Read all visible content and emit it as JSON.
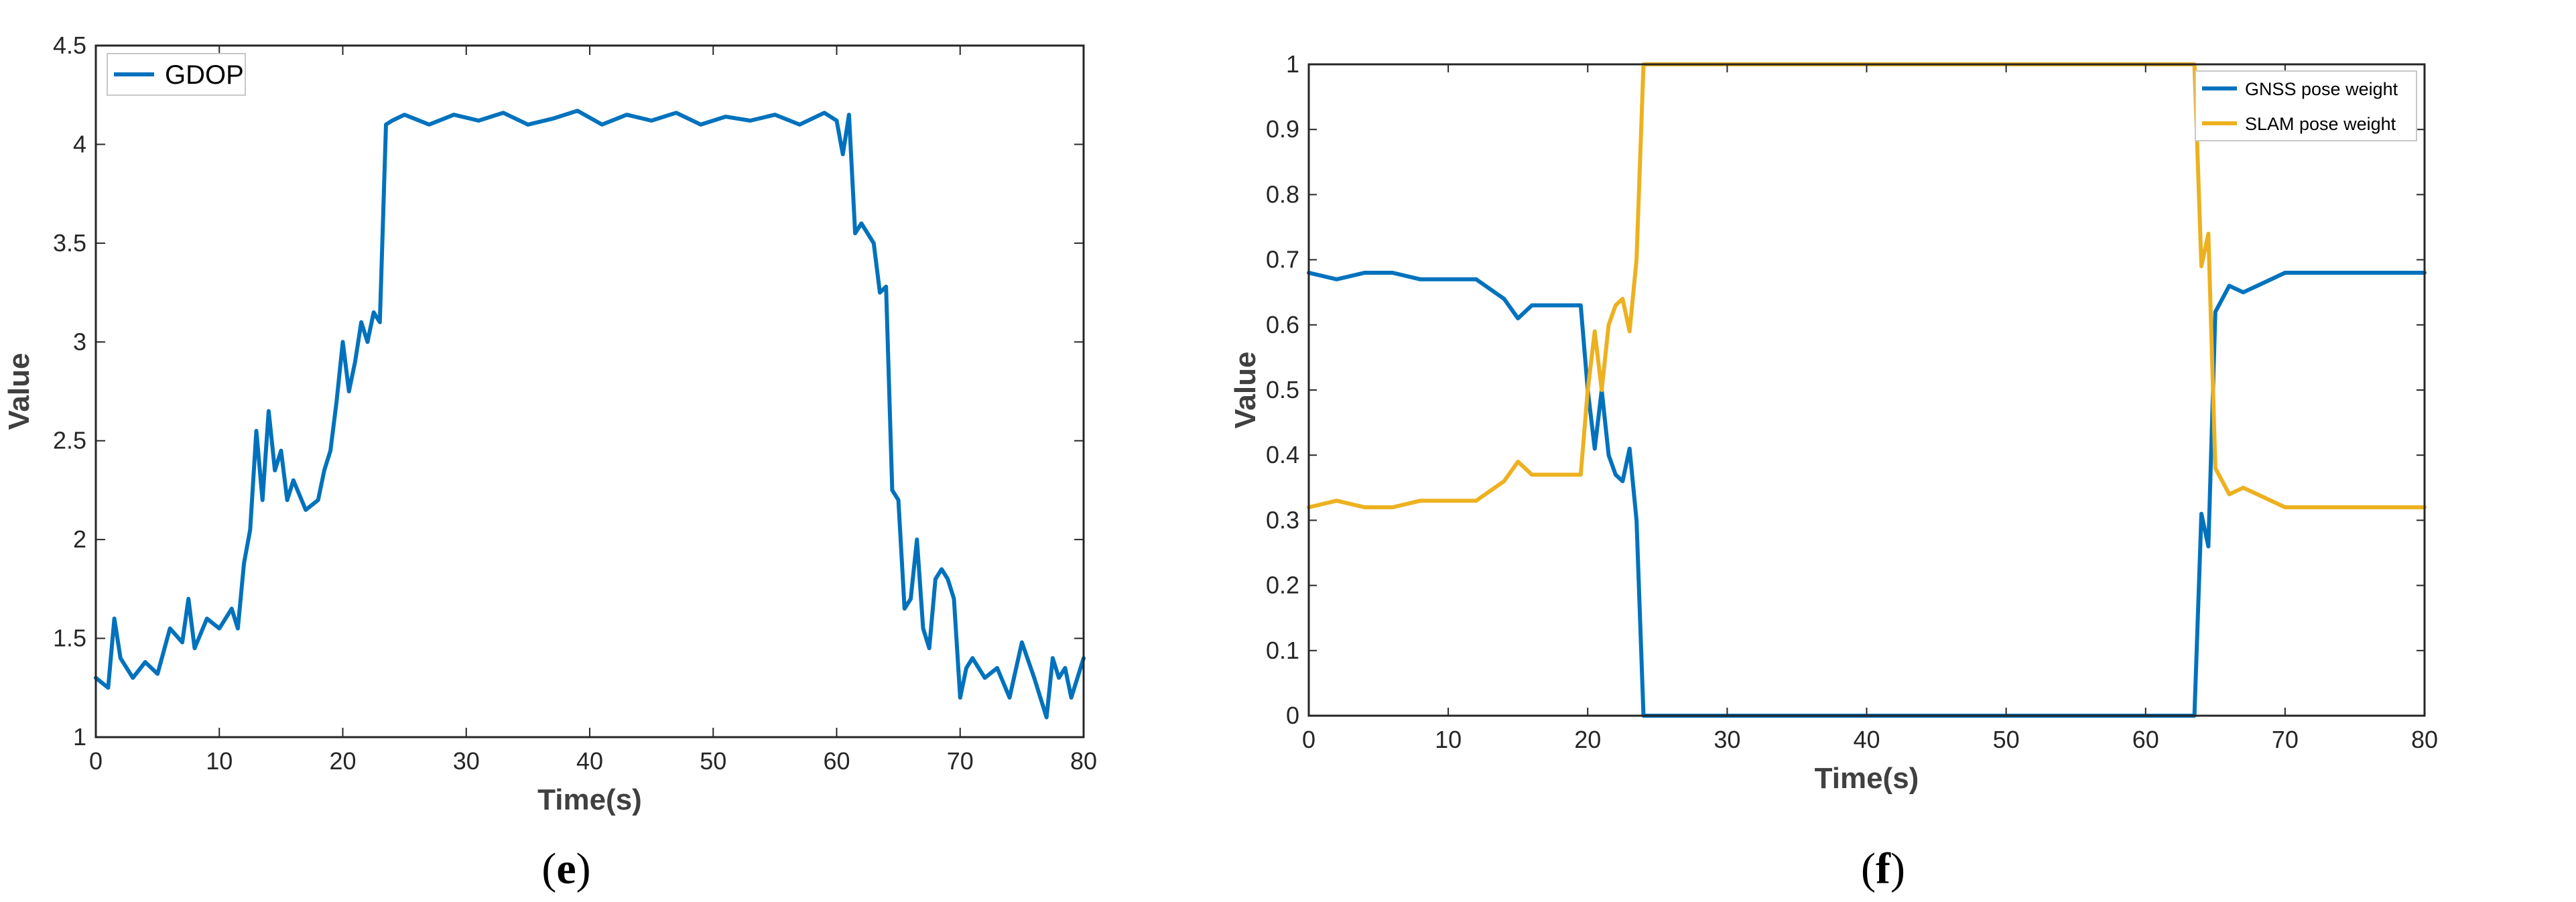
{
  "chart_data": [
    {
      "panel_label": "e",
      "type": "line",
      "xlabel": "Time(s)",
      "ylabel": "Value",
      "xlim": [
        0,
        80
      ],
      "ylim": [
        1,
        4.5
      ],
      "xticks": [
        0,
        10,
        20,
        30,
        40,
        50,
        60,
        70,
        80
      ],
      "yticks": [
        1,
        1.5,
        2,
        2.5,
        3,
        3.5,
        4,
        4.5
      ],
      "grid": false,
      "legend_position": "top-left",
      "series": [
        {
          "name": "GDOP",
          "color": "#0072BD",
          "x": [
            0,
            1,
            1.5,
            2,
            3,
            4,
            5,
            6,
            7,
            7.5,
            8,
            9,
            10,
            11,
            11.5,
            12,
            12.5,
            13,
            13.5,
            14,
            14.5,
            15,
            15.5,
            16,
            17,
            18,
            18.5,
            19,
            19.5,
            20,
            20.5,
            21,
            21.5,
            22,
            22.5,
            23,
            23.5,
            24,
            25,
            27,
            29,
            31,
            33,
            35,
            37,
            39,
            41,
            43,
            45,
            47,
            49,
            51,
            53,
            55,
            57,
            59,
            60,
            60.5,
            61,
            61.5,
            62,
            62.5,
            63,
            63.5,
            64,
            64.5,
            65,
            65.5,
            66,
            66.5,
            67,
            67.5,
            68,
            68.5,
            69,
            69.5,
            70,
            70.5,
            71,
            72,
            73,
            74,
            75,
            76,
            76.5,
            77,
            77.5,
            78,
            78.5,
            79,
            80
          ],
          "y": [
            1.3,
            1.25,
            1.6,
            1.4,
            1.3,
            1.38,
            1.32,
            1.55,
            1.48,
            1.7,
            1.45,
            1.6,
            1.55,
            1.65,
            1.55,
            1.88,
            2.05,
            2.55,
            2.2,
            2.65,
            2.35,
            2.45,
            2.2,
            2.3,
            2.15,
            2.2,
            2.35,
            2.45,
            2.7,
            3.0,
            2.75,
            2.9,
            3.1,
            3.0,
            3.15,
            3.1,
            4.1,
            4.12,
            4.15,
            4.1,
            4.15,
            4.12,
            4.16,
            4.1,
            4.13,
            4.17,
            4.1,
            4.15,
            4.12,
            4.16,
            4.1,
            4.14,
            4.12,
            4.15,
            4.1,
            4.16,
            4.12,
            3.95,
            4.15,
            3.55,
            3.6,
            3.55,
            3.5,
            3.25,
            3.28,
            2.25,
            2.2,
            1.65,
            1.7,
            2.0,
            1.55,
            1.45,
            1.8,
            1.85,
            1.8,
            1.7,
            1.2,
            1.35,
            1.4,
            1.3,
            1.35,
            1.2,
            1.48,
            1.3,
            1.2,
            1.1,
            1.4,
            1.3,
            1.35,
            1.2,
            1.4
          ]
        }
      ]
    },
    {
      "panel_label": "f",
      "type": "line",
      "xlabel": "Time(s)",
      "ylabel": "Value",
      "xlim": [
        0,
        80
      ],
      "ylim": [
        0,
        1
      ],
      "xticks": [
        0,
        10,
        20,
        30,
        40,
        50,
        60,
        70,
        80
      ],
      "yticks": [
        0,
        0.1,
        0.2,
        0.3,
        0.4,
        0.5,
        0.6,
        0.7,
        0.8,
        0.9,
        1
      ],
      "grid": false,
      "legend_position": "top-right",
      "series": [
        {
          "name": "GNSS pose weight",
          "color": "#0072BD",
          "x": [
            0,
            2,
            4,
            6,
            8,
            10,
            12,
            14,
            15,
            16,
            17,
            18,
            19.5,
            20,
            20.5,
            21,
            21.5,
            22,
            22.5,
            23,
            23.5,
            24,
            30,
            40,
            50,
            60,
            63,
            63.5,
            64,
            64.5,
            65,
            66,
            67,
            68,
            70,
            72,
            75,
            80
          ],
          "y": [
            0.68,
            0.67,
            0.68,
            0.68,
            0.67,
            0.67,
            0.67,
            0.64,
            0.61,
            0.63,
            0.63,
            0.63,
            0.63,
            0.5,
            0.41,
            0.5,
            0.4,
            0.37,
            0.36,
            0.41,
            0.3,
            0,
            0,
            0,
            0,
            0,
            0,
            0,
            0.31,
            0.26,
            0.62,
            0.66,
            0.65,
            0.66,
            0.68,
            0.68,
            0.68,
            0.68
          ]
        },
        {
          "name": "SLAM pose weight",
          "color": "#EDB120",
          "x": [
            0,
            2,
            4,
            6,
            8,
            10,
            12,
            14,
            15,
            16,
            17,
            18,
            19.5,
            20,
            20.5,
            21,
            21.5,
            22,
            22.5,
            23,
            23.5,
            24,
            30,
            40,
            50,
            60,
            63,
            63.5,
            64,
            64.5,
            65,
            66,
            67,
            68,
            70,
            72,
            75,
            80
          ],
          "y": [
            0.32,
            0.33,
            0.32,
            0.32,
            0.33,
            0.33,
            0.33,
            0.36,
            0.39,
            0.37,
            0.37,
            0.37,
            0.37,
            0.5,
            0.59,
            0.5,
            0.6,
            0.63,
            0.64,
            0.59,
            0.7,
            1,
            1,
            1,
            1,
            1,
            1,
            1,
            0.69,
            0.74,
            0.38,
            0.34,
            0.35,
            0.34,
            0.32,
            0.32,
            0.32,
            0.32
          ]
        }
      ]
    }
  ],
  "captions": {
    "e": "(e)",
    "f": "(f)"
  }
}
